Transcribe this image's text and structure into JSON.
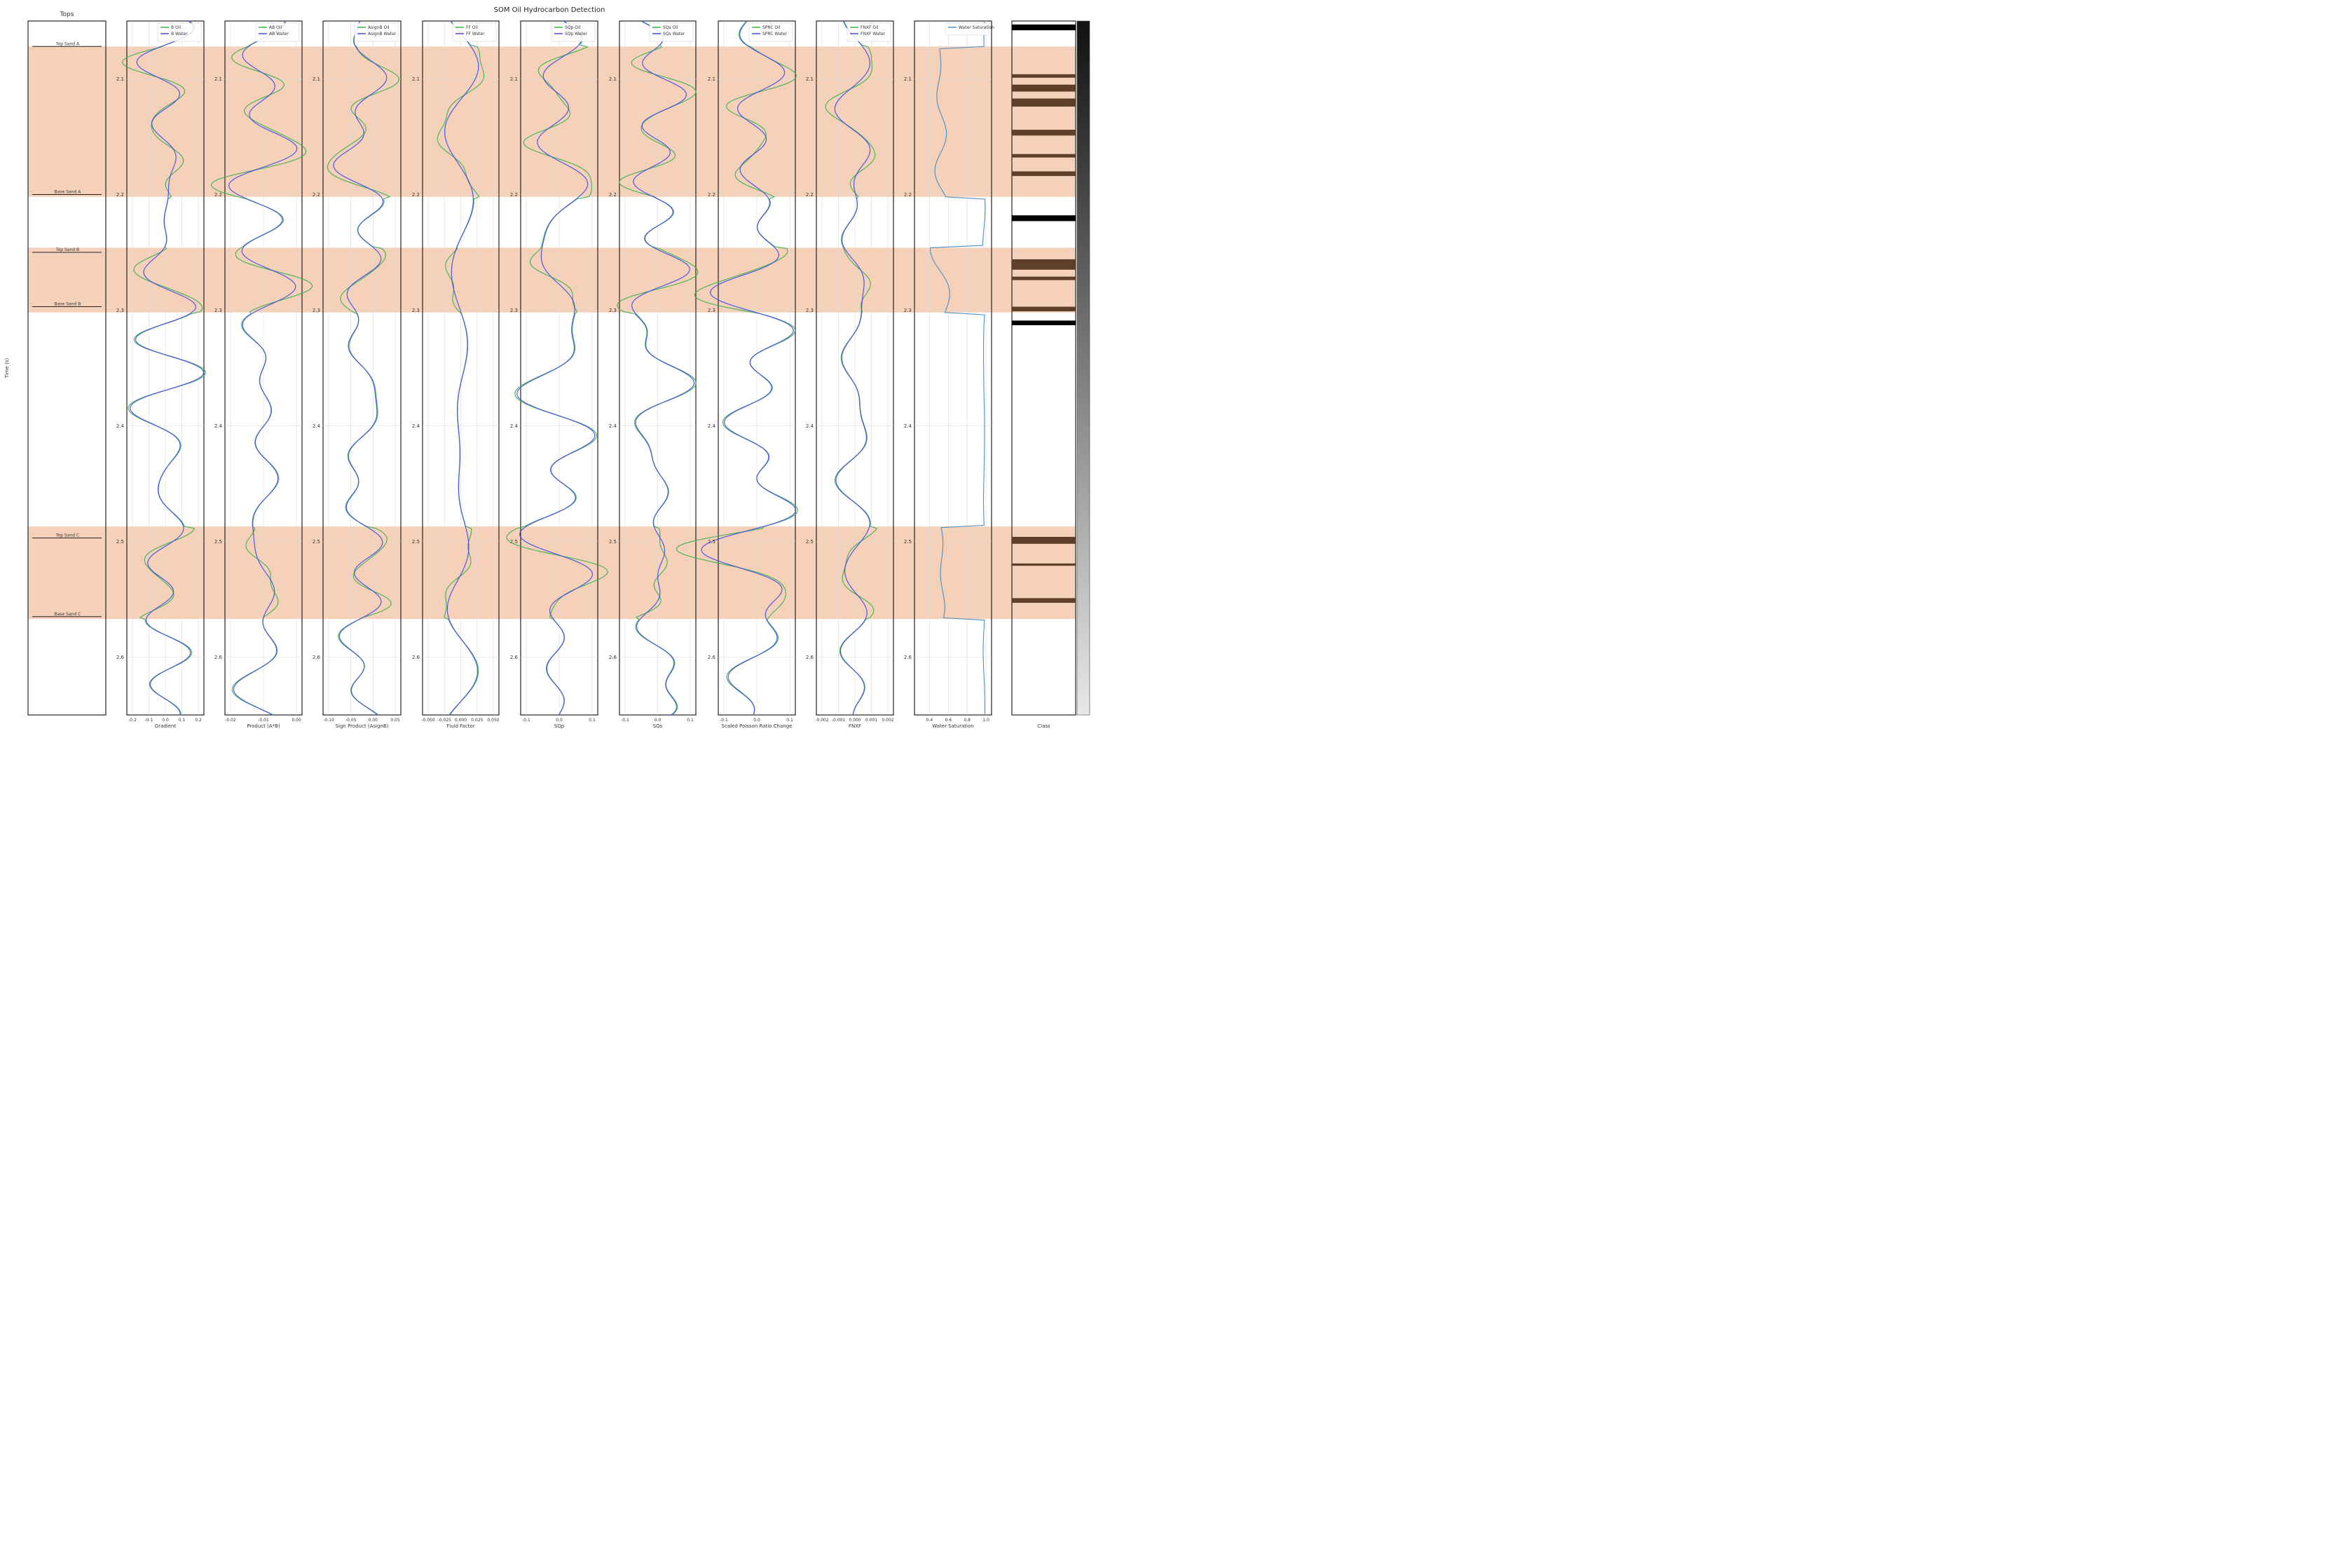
{
  "title": "SOM Oil Hydrocarbon Detection",
  "chart_data": [
    {
      "type": "table",
      "title": "Tops",
      "ylabel": "Time (s)",
      "ylim": [
        2.05,
        2.65
      ],
      "tops": [
        {
          "label": "Top Sand A",
          "depth": 2.072
        },
        {
          "label": "Base Sand A",
          "depth": 2.2
        },
        {
          "label": "Top Sand B",
          "depth": 2.25
        },
        {
          "label": "Base Sand B",
          "depth": 2.297
        },
        {
          "label": "Top Sand C",
          "depth": 2.497
        },
        {
          "label": "Base Sand C",
          "depth": 2.565
        }
      ]
    },
    {
      "type": "line",
      "xlabel": "Gradient",
      "xlim": [
        -0.2,
        0.2
      ],
      "xticks": [
        "-0.2",
        "-0.1",
        "0.0",
        "0.1",
        "0.2"
      ],
      "series": [
        {
          "name": "B Oil",
          "color": "#3cb04a"
        },
        {
          "name": "B Water",
          "color": "#3f4ae6"
        }
      ],
      "ylim": [
        2.05,
        2.65
      ],
      "yticks": [
        "2.1",
        "2.2",
        "2.3",
        "2.4",
        "2.5",
        "2.6"
      ],
      "amplitude": 0.11
    },
    {
      "type": "line",
      "xlabel": "Product (A*B)",
      "xlim": [
        -0.02,
        0.0
      ],
      "xticks": [
        "-0.02",
        "-0.01",
        "0.00"
      ],
      "series": [
        {
          "name": "AB Oil",
          "color": "#3cb04a"
        },
        {
          "name": "AB Water",
          "color": "#3f4ae6"
        }
      ],
      "ylim": [
        2.05,
        2.65
      ],
      "yticks": [
        "2.1",
        "2.2",
        "2.3",
        "2.4",
        "2.5",
        "2.6"
      ],
      "amplitude": 0.007
    },
    {
      "type": "line",
      "xlabel": "Sign Product (AsignB)",
      "xlim": [
        -0.1,
        0.05
      ],
      "xticks": [
        "-0.10",
        "-0.05",
        "0.00",
        "0.05"
      ],
      "series": [
        {
          "name": "AsignB Oil",
          "color": "#3cb04a"
        },
        {
          "name": "AsignB Water",
          "color": "#3f4ae6"
        }
      ],
      "ylim": [
        2.05,
        2.65
      ],
      "yticks": [
        "2.1",
        "2.2",
        "2.3",
        "2.4",
        "2.5",
        "2.6"
      ],
      "amplitude": 0.04
    },
    {
      "type": "line",
      "xlabel": "Fluid Factor",
      "xlim": [
        -0.05,
        0.05
      ],
      "xticks": [
        "-0.050",
        "-0.025",
        "0.000",
        "0.025",
        "0.050"
      ],
      "series": [
        {
          "name": "FF Oil",
          "color": "#3cb04a"
        },
        {
          "name": "FF Water",
          "color": "#3f4ae6"
        }
      ],
      "ylim": [
        2.05,
        2.65
      ],
      "yticks": [
        "2.1",
        "2.2",
        "2.3",
        "2.4",
        "2.5",
        "2.6"
      ],
      "amplitude": 0.022
    },
    {
      "type": "line",
      "xlabel": "SQp",
      "xlim": [
        -0.1,
        0.1
      ],
      "xticks": [
        "-0.1",
        "0.0",
        "0.1"
      ],
      "series": [
        {
          "name": "SQp Oil",
          "color": "#3cb04a"
        },
        {
          "name": "SQp Water",
          "color": "#3f4ae6"
        }
      ],
      "ylim": [
        2.05,
        2.65
      ],
      "yticks": [
        "2.1",
        "2.2",
        "2.3",
        "2.4",
        "2.5",
        "2.6"
      ],
      "amplitude": 0.075
    },
    {
      "type": "line",
      "xlabel": "SQs",
      "xlim": [
        -0.1,
        0.1
      ],
      "xticks": [
        "-0.1",
        "0.0",
        "0.1"
      ],
      "series": [
        {
          "name": "SQs Oil",
          "color": "#3cb04a"
        },
        {
          "name": "SQs Water",
          "color": "#3f4ae6"
        }
      ],
      "ylim": [
        2.05,
        2.65
      ],
      "yticks": [
        "2.1",
        "2.2",
        "2.3",
        "2.4",
        "2.5",
        "2.6"
      ],
      "amplitude": 0.07
    },
    {
      "type": "line",
      "xlabel": "Scaled Poisson Ratio Change",
      "xlim": [
        -0.1,
        0.1
      ],
      "xticks": [
        "-0.1",
        "0.0",
        "0.1"
      ],
      "series": [
        {
          "name": "SPRC Oil",
          "color": "#3cb04a"
        },
        {
          "name": "SPRC Water",
          "color": "#3f4ae6"
        }
      ],
      "ylim": [
        2.05,
        2.65
      ],
      "yticks": [
        "2.1",
        "2.2",
        "2.3",
        "2.4",
        "2.5",
        "2.6"
      ],
      "amplitude": 0.075
    },
    {
      "type": "line",
      "xlabel": "FNXF",
      "xlim": [
        -0.002,
        0.002
      ],
      "xticks": [
        "-0.002",
        "-0.001",
        "0.000",
        "0.001",
        "0.002"
      ],
      "series": [
        {
          "name": "FNXF Oil",
          "color": "#3cb04a"
        },
        {
          "name": "FNXF Water",
          "color": "#3f4ae6"
        }
      ],
      "ylim": [
        2.05,
        2.65
      ],
      "yticks": [
        "2.1",
        "2.2",
        "2.3",
        "2.4",
        "2.5",
        "2.6"
      ],
      "amplitude": 0.0008
    },
    {
      "type": "line",
      "xlabel": "Water Saturation",
      "xlim": [
        0.3,
        1.0
      ],
      "xticks": [
        "0.4",
        "0.6",
        "0.8",
        "1.0"
      ],
      "series": [
        {
          "name": "Water Saturation",
          "color": "#4a90c8"
        }
      ],
      "ylim": [
        2.05,
        2.65
      ],
      "yticks": [
        "2.1",
        "2.2",
        "2.3",
        "2.4",
        "2.5",
        "2.6"
      ],
      "background": 0.98,
      "sand_value": 0.52
    },
    {
      "type": "heatmap",
      "xlabel": "Class",
      "ylim": [
        2.05,
        2.65
      ],
      "colorbar": "grey gradient",
      "bands": [
        {
          "from": 2.053,
          "to": 2.058,
          "class": "black"
        },
        {
          "from": 2.096,
          "to": 2.099,
          "class": "brown"
        },
        {
          "from": 2.105,
          "to": 2.111,
          "class": "brown"
        },
        {
          "from": 2.117,
          "to": 2.124,
          "class": "brown"
        },
        {
          "from": 2.144,
          "to": 2.149,
          "class": "brown"
        },
        {
          "from": 2.165,
          "to": 2.168,
          "class": "brown"
        },
        {
          "from": 2.18,
          "to": 2.184,
          "class": "brown"
        },
        {
          "from": 2.218,
          "to": 2.223,
          "class": "black"
        },
        {
          "from": 2.256,
          "to": 2.265,
          "class": "brown"
        },
        {
          "from": 2.271,
          "to": 2.274,
          "class": "brown"
        },
        {
          "from": 2.297,
          "to": 2.301,
          "class": "brown"
        },
        {
          "from": 2.309,
          "to": 2.313,
          "class": "black"
        },
        {
          "from": 2.496,
          "to": 2.502,
          "class": "brown"
        },
        {
          "from": 2.519,
          "to": 2.521,
          "class": "brown"
        },
        {
          "from": 2.549,
          "to": 2.553,
          "class": "brown"
        }
      ],
      "colors": {
        "black": "#000000",
        "brown": "#5d3f2a"
      }
    }
  ],
  "theme": {
    "zone_fill": "#f5c9ae",
    "axis_color": "#222222",
    "grid_color": "#d9d9d9"
  },
  "sand_zones": [
    [
      2.072,
      2.202
    ],
    [
      2.246,
      2.302
    ],
    [
      2.487,
      2.567
    ]
  ]
}
